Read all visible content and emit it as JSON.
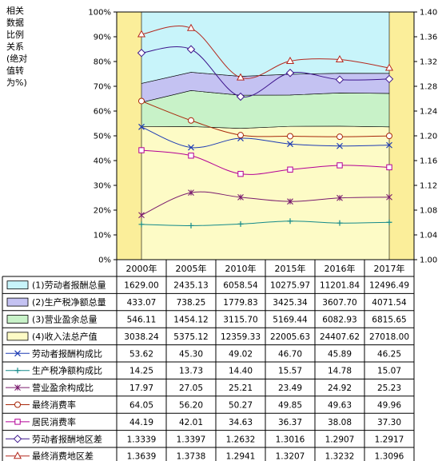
{
  "side_note": "相关\n数据\n比例\n关系\n(绝对\n值转\n为%)",
  "chart_data": {
    "type": "area",
    "categories": [
      "2000年",
      "2005年",
      "2010年",
      "2015年",
      "2016年",
      "2017年"
    ],
    "y_left": {
      "range": [
        0,
        100
      ],
      "ticks": [
        "0%",
        "10%",
        "20%",
        "30%",
        "40%",
        "50%",
        "60%",
        "70%",
        "80%",
        "90%",
        "100%"
      ]
    },
    "y_right": {
      "range": [
        1.0,
        1.4
      ],
      "ticks": [
        "1.00",
        "1.04",
        "1.08",
        "1.12",
        "1.16",
        "1.20",
        "1.24",
        "1.28",
        "1.32",
        "1.36",
        "1.40"
      ]
    },
    "stack_series": [
      {
        "name": "(1)劳动者报酬总量",
        "color": "#c8f4fa",
        "values": [
          1629.0,
          2435.13,
          6058.54,
          10275.97,
          11201.84,
          12496.49
        ],
        "display": [
          "1629.00",
          "2435.13",
          "6058.54",
          "10275.97",
          "11201.84",
          "12496.49"
        ]
      },
      {
        "name": "(2)生产税净额总量",
        "color": "#c4c2f2",
        "values": [
          433.07,
          738.25,
          1779.83,
          3425.34,
          3607.7,
          4071.54
        ],
        "display": [
          "433.07",
          "738.25",
          "1779.83",
          "3425.34",
          "3607.70",
          "4071.54"
        ]
      },
      {
        "name": "(3)营业盈余总量",
        "color": "#c8f2c8",
        "values": [
          546.11,
          1454.12,
          3115.7,
          5169.44,
          6082.93,
          6815.65
        ],
        "display": [
          "546.11",
          "1454.12",
          "3115.70",
          "5169.44",
          "6082.93",
          "6815.65"
        ]
      },
      {
        "name": "(4)收入法总产值",
        "color": "#fdfbc6",
        "values": [
          3038.24,
          5375.12,
          12359.33,
          22005.63,
          24407.62,
          27018.0
        ],
        "display": [
          "3038.24",
          "5375.12",
          "12359.33",
          "22005.63",
          "24407.62",
          "27018.00"
        ]
      }
    ],
    "line_series": [
      {
        "name": "劳动者报酬构成比",
        "axis": "left",
        "marker": "x",
        "color": "#1e3cb4",
        "values": [
          53.62,
          45.3,
          49.02,
          46.7,
          45.89,
          46.25
        ],
        "display": [
          "53.62",
          "45.30",
          "49.02",
          "46.70",
          "45.89",
          "46.25"
        ]
      },
      {
        "name": "生产税净额构成比",
        "axis": "left",
        "marker": "plus",
        "color": "#148a8a",
        "values": [
          14.25,
          13.73,
          14.4,
          15.57,
          14.78,
          15.07
        ],
        "display": [
          "14.25",
          "13.73",
          "14.40",
          "15.57",
          "14.78",
          "15.07"
        ]
      },
      {
        "name": "营业盈余构成比",
        "axis": "left",
        "marker": "star",
        "color": "#7a1c6e",
        "values": [
          17.97,
          27.05,
          25.21,
          23.49,
          24.92,
          25.23
        ],
        "display": [
          "17.97",
          "27.05",
          "25.21",
          "23.49",
          "24.92",
          "25.23"
        ]
      },
      {
        "name": "最终消费率",
        "axis": "left",
        "marker": "circle",
        "color": "#a8280a",
        "values": [
          64.05,
          56.2,
          50.27,
          49.85,
          49.63,
          49.96
        ],
        "display": [
          "64.05",
          "56.20",
          "50.27",
          "49.85",
          "49.63",
          "49.96"
        ]
      },
      {
        "name": "居民消费率",
        "axis": "left",
        "marker": "square",
        "color": "#b40096",
        "values": [
          44.19,
          42.01,
          34.63,
          36.37,
          38.08,
          37.3
        ],
        "display": [
          "44.19",
          "42.01",
          "34.63",
          "36.37",
          "38.08",
          "37.30"
        ]
      },
      {
        "name": "劳动者报酬地区差",
        "axis": "right",
        "marker": "diamond",
        "color": "#3c148c",
        "values": [
          1.3339,
          1.3397,
          1.2632,
          1.3016,
          1.2907,
          1.2917
        ],
        "display": [
          "1.3339",
          "1.3397",
          "1.2632",
          "1.3016",
          "1.2907",
          "1.2917"
        ]
      },
      {
        "name": "最终消费地区差",
        "axis": "right",
        "marker": "triangle",
        "color": "#b4281e",
        "values": [
          1.3639,
          1.3738,
          1.2941,
          1.3207,
          1.3232,
          1.3096
        ],
        "display": [
          "1.3639",
          "1.3738",
          "1.2941",
          "1.3207",
          "1.3232",
          "1.3096"
        ]
      }
    ],
    "band_colors": {
      "background": "#ffffff",
      "side_columns": "#fbee9a",
      "grid": "#000000"
    }
  }
}
